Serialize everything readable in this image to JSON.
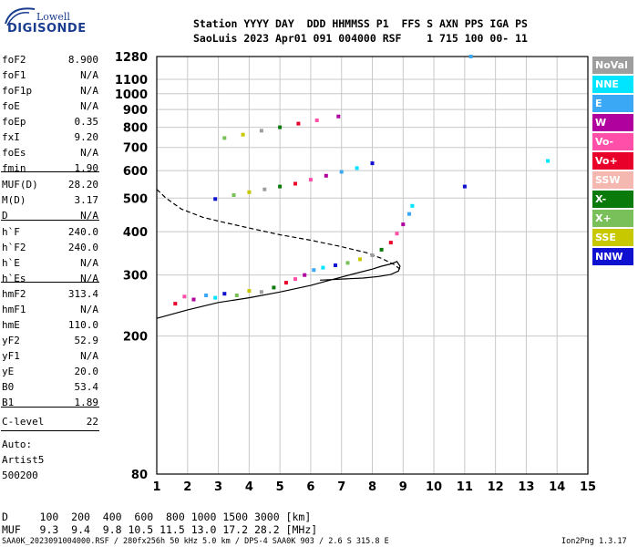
{
  "logo": {
    "line1": "Lowell",
    "line2": "DIGISONDE"
  },
  "header": {
    "row1": "Station YYYY DAY  DDD HHMMSS P1  FFS S AXN PPS IGA PS",
    "row2": "SaoLuis 2023 Apr01 091 004000 RSF    1 715 100 00- 11"
  },
  "params": [
    {
      "name": "foF2",
      "value": "8.900"
    },
    {
      "name": "foF1",
      "value": "N/A"
    },
    {
      "name": "foF1p",
      "value": "N/A"
    },
    {
      "name": "foE",
      "value": "N/A"
    },
    {
      "name": "foEp",
      "value": "0.35"
    },
    {
      "name": "fxI",
      "value": "9.20"
    },
    {
      "name": "foEs",
      "value": "N/A"
    },
    {
      "name": "fmin",
      "value": "1.90"
    },
    {
      "name": "MUF(D)",
      "value": "28.20"
    },
    {
      "name": "M(D)",
      "value": "3.17"
    },
    {
      "name": "D",
      "value": "N/A"
    },
    {
      "name": "h`F",
      "value": "240.0"
    },
    {
      "name": "h`F2",
      "value": "240.0"
    },
    {
      "name": "h`E",
      "value": "N/A"
    },
    {
      "name": "h`Es",
      "value": "N/A"
    },
    {
      "name": "hmF2",
      "value": "313.4"
    },
    {
      "name": "hmF1",
      "value": "N/A"
    },
    {
      "name": "hmE",
      "value": "110.0"
    },
    {
      "name": "yF2",
      "value": "52.9"
    },
    {
      "name": "yF1",
      "value": "N/A"
    },
    {
      "name": "yE",
      "value": "20.0"
    },
    {
      "name": "B0",
      "value": "53.4"
    },
    {
      "name": "B1",
      "value": "1.89"
    },
    {
      "name": "C-level",
      "value": "22"
    }
  ],
  "auto": {
    "line1": "Auto:",
    "line2": "Artist5",
    "line3": "500200"
  },
  "legend": [
    {
      "label": "NoVal",
      "color": "#9e9e9e"
    },
    {
      "label": "NNE",
      "color": "#00e5ff"
    },
    {
      "label": "E",
      "color": "#3ba8f5"
    },
    {
      "label": "W",
      "color": "#b0009e"
    },
    {
      "label": "Vo-",
      "color": "#ff4fa8"
    },
    {
      "label": "Vo+",
      "color": "#e8002a"
    },
    {
      "label": "SSW",
      "color": "#f4b8b0"
    },
    {
      "label": "X-",
      "color": "#0a7a0a"
    },
    {
      "label": "X+",
      "color": "#7ac05a"
    },
    {
      "label": "SSE",
      "color": "#c8c800"
    },
    {
      "label": "NNW",
      "color": "#1010d0"
    }
  ],
  "muf_table": {
    "d_row": "D     100  200  400  600  800 1000 1500 3000 [km]",
    "muf_row": "MUF   9.3  9.4  9.8 10.5 11.5 13.0 17.2 28.2 [MHz]"
  },
  "footer": {
    "left": "SAA0K_2023091004000.RSF / 280fx256h 50 kHz 5.0 km / DPS-4 SAA0K 903 / 2.6 S 315.8 E",
    "right": "Ion2Png 1.3.17"
  },
  "chart_data": {
    "type": "scatter",
    "title": "",
    "xlabel": "",
    "ylabel": "",
    "x_unit_hint": "MHz",
    "y_unit_hint": "km",
    "xlim": [
      1,
      15
    ],
    "ylim": [
      80,
      1280
    ],
    "y_scale": "log",
    "grid": true,
    "x_ticks": [
      1,
      2,
      3,
      4,
      5,
      6,
      7,
      8,
      9,
      10,
      11,
      12,
      13,
      14,
      15
    ],
    "y_ticks": [
      80,
      200,
      300,
      400,
      500,
      600,
      700,
      800,
      900,
      1000,
      1100,
      1280
    ],
    "traces": [
      {
        "name": "profile",
        "style": "solid",
        "x": [
          1.0,
          2.0,
          3.0,
          4.0,
          5.0,
          6.0,
          6.5,
          7.0,
          7.5,
          8.0,
          8.3,
          8.6,
          8.8,
          8.9,
          8.85,
          8.6,
          8.2,
          7.7,
          7.0,
          6.3
        ],
        "y": [
          225,
          238,
          250,
          258,
          268,
          280,
          288,
          296,
          304,
          312,
          318,
          323,
          328,
          318,
          308,
          301,
          297,
          294,
          292,
          290
        ]
      },
      {
        "name": "profile-upper",
        "style": "dashed",
        "x": [
          1.0,
          1.3,
          1.8,
          2.5,
          3.2,
          4.0,
          5.0,
          6.0,
          7.0,
          7.8,
          8.3,
          8.7,
          8.9
        ],
        "y": [
          530,
          500,
          465,
          440,
          425,
          410,
          392,
          378,
          362,
          348,
          335,
          322,
          312
        ]
      }
    ],
    "points": [
      {
        "x": 1.6,
        "y": 248
      },
      {
        "x": 1.9,
        "y": 260
      },
      {
        "x": 2.2,
        "y": 255
      },
      {
        "x": 2.6,
        "y": 262
      },
      {
        "x": 2.9,
        "y": 258
      },
      {
        "x": 3.2,
        "y": 265
      },
      {
        "x": 3.6,
        "y": 262
      },
      {
        "x": 4.0,
        "y": 270
      },
      {
        "x": 4.4,
        "y": 268
      },
      {
        "x": 4.8,
        "y": 276
      },
      {
        "x": 5.2,
        "y": 285
      },
      {
        "x": 5.5,
        "y": 292
      },
      {
        "x": 5.8,
        "y": 300
      },
      {
        "x": 6.1,
        "y": 310
      },
      {
        "x": 6.4,
        "y": 315
      },
      {
        "x": 6.8,
        "y": 320
      },
      {
        "x": 7.2,
        "y": 325
      },
      {
        "x": 7.6,
        "y": 333
      },
      {
        "x": 8.0,
        "y": 342
      },
      {
        "x": 8.3,
        "y": 355
      },
      {
        "x": 8.6,
        "y": 372
      },
      {
        "x": 8.8,
        "y": 395
      },
      {
        "x": 9.0,
        "y": 420
      },
      {
        "x": 9.2,
        "y": 450
      },
      {
        "x": 9.3,
        "y": 475
      },
      {
        "x": 2.9,
        "y": 497
      },
      {
        "x": 3.5,
        "y": 510
      },
      {
        "x": 4.0,
        "y": 520
      },
      {
        "x": 4.5,
        "y": 530
      },
      {
        "x": 5.0,
        "y": 540
      },
      {
        "x": 5.5,
        "y": 550
      },
      {
        "x": 6.0,
        "y": 565
      },
      {
        "x": 6.5,
        "y": 580
      },
      {
        "x": 7.0,
        "y": 595
      },
      {
        "x": 7.5,
        "y": 610
      },
      {
        "x": 8.0,
        "y": 630
      },
      {
        "x": 3.2,
        "y": 745
      },
      {
        "x": 3.8,
        "y": 762
      },
      {
        "x": 4.4,
        "y": 782
      },
      {
        "x": 5.0,
        "y": 800
      },
      {
        "x": 5.6,
        "y": 820
      },
      {
        "x": 6.2,
        "y": 838
      },
      {
        "x": 6.9,
        "y": 860
      },
      {
        "x": 11.2,
        "y": 1280
      },
      {
        "x": 13.7,
        "y": 640
      },
      {
        "x": 11.0,
        "y": 540
      }
    ]
  }
}
